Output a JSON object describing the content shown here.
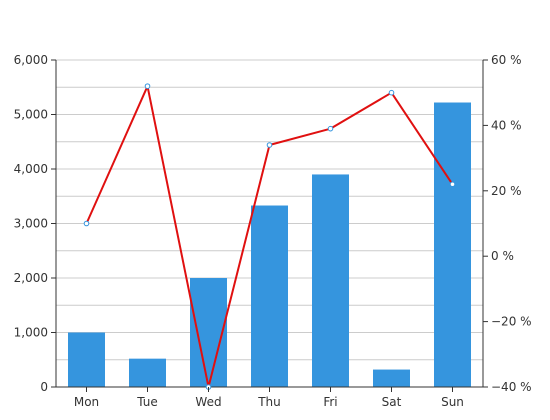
{
  "chart_data": {
    "type": "bar",
    "categories": [
      "Mon",
      "Tue",
      "Wed",
      "Thu",
      "Fri",
      "Sat",
      "Sun"
    ],
    "series": [
      {
        "type": "bar",
        "axis": "left",
        "color": "#3595de",
        "values": [
          1000,
          520,
          2000,
          3330,
          3900,
          320,
          5220
        ]
      },
      {
        "type": "line",
        "axis": "right",
        "color": "#e01010",
        "values": [
          10,
          52,
          -40,
          34,
          39,
          50,
          22
        ]
      }
    ],
    "y_left": {
      "min": 0,
      "max": 6000,
      "ticks": [
        "0",
        "1,000",
        "2,000",
        "3,000",
        "4,000",
        "5,000",
        "6,000"
      ]
    },
    "y_right": {
      "min": -40,
      "max": 60,
      "ticks": [
        "−40 %",
        "−20 %",
        "0 %",
        "20 %",
        "40 %",
        "60 %"
      ]
    },
    "grid": true
  }
}
